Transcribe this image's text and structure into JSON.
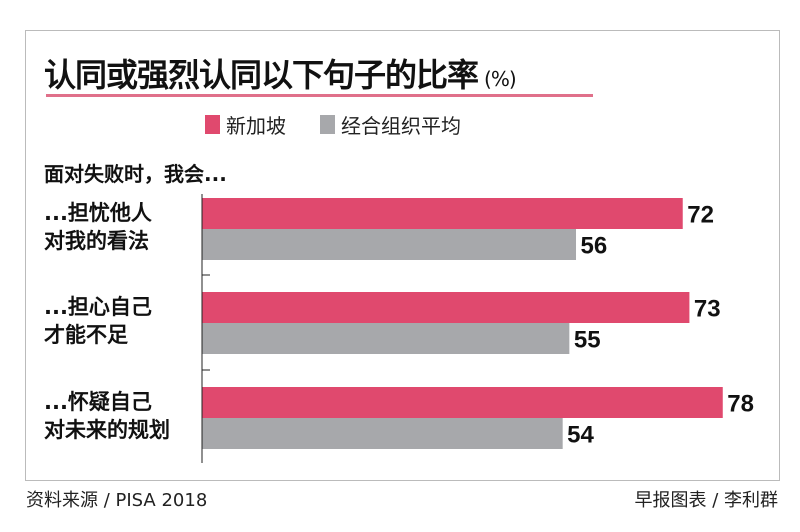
{
  "chart_data": {
    "type": "bar",
    "orientation": "horizontal",
    "title": "认同或强烈认同以下句子的比率",
    "title_unit": "(%)",
    "subtitle": "面对失败时，我会...",
    "categories": [
      [
        "...担忧他人",
        "对我的看法"
      ],
      [
        "...担心自己",
        "才能不足"
      ],
      [
        "...怀疑自己",
        "对未来的规划"
      ]
    ],
    "series": [
      {
        "name": "新加坡",
        "color": "#e0496e",
        "values": [
          72,
          73,
          78
        ]
      },
      {
        "name": "经合组织平均",
        "color": "#a7a8ab",
        "values": [
          56,
          55,
          54
        ]
      }
    ],
    "xlim": [
      0,
      78
    ],
    "legend_position": "top",
    "source": "资料来源 / PISA 2018",
    "credit": "早报图表 / 李利群"
  }
}
